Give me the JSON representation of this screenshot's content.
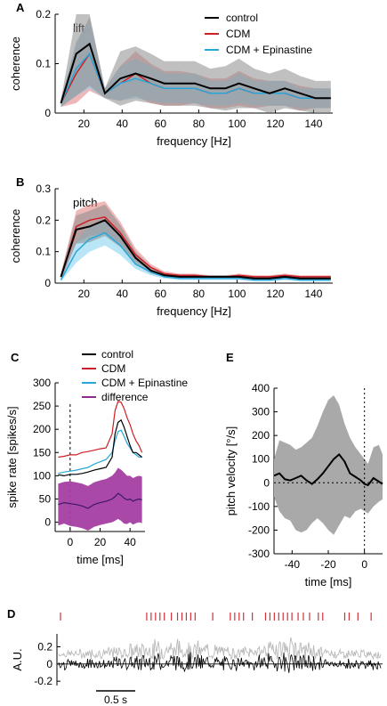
{
  "colors": {
    "control": "#000000",
    "cdm": "#cc1f26",
    "epinastine": "#29a6d9",
    "difference": "#8e2a8c",
    "difference_band": "#a53ea3",
    "gray_band": "#a9a9a9",
    "raster": "#d0323a",
    "trace_light": "#b9b9b9"
  },
  "chart_data": [
    {
      "id": "A",
      "type": "line",
      "panel_label": "A",
      "inset_label": "lift",
      "xlabel": "frequency [Hz]",
      "ylabel": "coherence",
      "xlim": [
        5,
        150
      ],
      "ylim": [
        0,
        0.2
      ],
      "xticks": [
        20,
        40,
        60,
        80,
        100,
        120,
        140
      ],
      "yticks": [
        0,
        0.1,
        0.2
      ],
      "x": [
        8,
        16,
        23,
        31,
        39,
        47,
        55,
        62,
        70,
        78,
        86,
        94,
        101,
        109,
        117,
        125,
        133,
        141,
        149
      ],
      "series": [
        {
          "name": "control",
          "key": "control",
          "values": [
            0.02,
            0.12,
            0.14,
            0.04,
            0.07,
            0.08,
            0.07,
            0.06,
            0.06,
            0.06,
            0.05,
            0.05,
            0.06,
            0.05,
            0.04,
            0.05,
            0.04,
            0.03,
            0.03
          ],
          "band": [
            0.015,
            0.17,
            0.17,
            0.02,
            0.11,
            0.11,
            0.1,
            0.09,
            0.09,
            0.09,
            0.08,
            0.09,
            0.1,
            0.08,
            0.08,
            0.08,
            0.07,
            0.07,
            0.07
          ]
        },
        {
          "name": "CDM",
          "key": "cdm",
          "values": [
            0.02,
            0.08,
            0.12,
            0.04,
            0.06,
            0.08,
            0.06,
            0.05,
            0.05,
            0.05,
            0.04,
            0.04,
            0.05,
            0.04,
            0.04,
            0.04,
            0.03,
            0.03,
            0.03
          ],
          "band": [
            0.015,
            0.12,
            0.15,
            0.02,
            0.07,
            0.09,
            0.08,
            0.07,
            0.07,
            0.06,
            0.06,
            0.06,
            0.07,
            0.06,
            0.05,
            0.05,
            0.05,
            0.04,
            0.04
          ]
        },
        {
          "name": "CDM + Epinastine",
          "key": "epinastine",
          "values": [
            0.02,
            0.09,
            0.12,
            0.04,
            0.06,
            0.07,
            0.06,
            0.05,
            0.05,
            0.05,
            0.04,
            0.04,
            0.05,
            0.04,
            0.04,
            0.04,
            0.03,
            0.03,
            0.03
          ],
          "band": [
            0.015,
            0.11,
            0.14,
            0.02,
            0.07,
            0.08,
            0.07,
            0.06,
            0.06,
            0.06,
            0.05,
            0.05,
            0.06,
            0.05,
            0.05,
            0.05,
            0.04,
            0.04,
            0.04
          ]
        }
      ]
    },
    {
      "id": "B",
      "type": "line",
      "panel_label": "B",
      "inset_label": "pitch",
      "xlabel": "frequency [Hz]",
      "ylabel": "coherence",
      "xlim": [
        5,
        150
      ],
      "ylim": [
        0,
        0.3
      ],
      "xticks": [
        20,
        40,
        60,
        80,
        100,
        120,
        140
      ],
      "yticks": [
        0,
        0.1,
        0.2,
        0.3
      ],
      "x": [
        8,
        16,
        23,
        31,
        39,
        47,
        55,
        62,
        70,
        78,
        86,
        94,
        101,
        109,
        117,
        125,
        133,
        141,
        149
      ],
      "series": [
        {
          "name": "control",
          "key": "control",
          "values": [
            0.02,
            0.17,
            0.18,
            0.2,
            0.15,
            0.08,
            0.04,
            0.025,
            0.02,
            0.02,
            0.02,
            0.02,
            0.02,
            0.015,
            0.015,
            0.02,
            0.015,
            0.015,
            0.015
          ],
          "band": [
            0.02,
            0.09,
            0.1,
            0.1,
            0.07,
            0.04,
            0.02,
            0.01,
            0.01,
            0.01,
            0.01,
            0.01,
            0.01,
            0.01,
            0.01,
            0.01,
            0.01,
            0.01,
            0.01
          ]
        },
        {
          "name": "CDM",
          "key": "cdm",
          "values": [
            0.02,
            0.18,
            0.2,
            0.21,
            0.16,
            0.09,
            0.05,
            0.03,
            0.025,
            0.025,
            0.02,
            0.02,
            0.025,
            0.02,
            0.02,
            0.025,
            0.02,
            0.02,
            0.02
          ],
          "band": [
            0.02,
            0.1,
            0.1,
            0.1,
            0.07,
            0.04,
            0.02,
            0.015,
            0.01,
            0.01,
            0.01,
            0.01,
            0.01,
            0.01,
            0.01,
            0.01,
            0.01,
            0.01,
            0.01
          ]
        },
        {
          "name": "CDM + Epinastine",
          "key": "epinastine",
          "values": [
            0.01,
            0.1,
            0.14,
            0.16,
            0.12,
            0.06,
            0.035,
            0.02,
            0.015,
            0.015,
            0.015,
            0.015,
            0.015,
            0.01,
            0.01,
            0.015,
            0.01,
            0.01,
            0.01
          ],
          "band": [
            0.01,
            0.07,
            0.08,
            0.08,
            0.06,
            0.03,
            0.02,
            0.01,
            0.01,
            0.01,
            0.01,
            0.01,
            0.01,
            0.01,
            0.01,
            0.01,
            0.01,
            0.01,
            0.01
          ]
        }
      ]
    },
    {
      "id": "C",
      "type": "line",
      "panel_label": "C",
      "xlabel": "time [ms]",
      "ylabel": "spike rate [spikes/s]",
      "xlim": [
        -10,
        50
      ],
      "ylim": [
        -20,
        300
      ],
      "xticks": [
        0,
        20,
        40
      ],
      "yticks": [
        0,
        50,
        100,
        150,
        200,
        250,
        300
      ],
      "vline": 0,
      "x": [
        -8,
        -4,
        0,
        4,
        8,
        12,
        16,
        20,
        24,
        28,
        30,
        32,
        34,
        36,
        38,
        40,
        42,
        44,
        46,
        48
      ],
      "series": [
        {
          "name": "control",
          "key": "control",
          "values": [
            102,
            100,
            103,
            103,
            105,
            108,
            112,
            115,
            118,
            140,
            190,
            215,
            220,
            205,
            185,
            165,
            150,
            150,
            145,
            140
          ]
        },
        {
          "name": "CDM",
          "key": "cdm",
          "values": [
            140,
            142,
            145,
            145,
            150,
            152,
            155,
            158,
            160,
            190,
            240,
            260,
            258,
            245,
            225,
            210,
            190,
            175,
            165,
            150
          ]
        },
        {
          "name": "CDM + Epinastine",
          "key": "epinastine",
          "values": [
            105,
            108,
            110,
            112,
            115,
            118,
            125,
            130,
            135,
            150,
            175,
            195,
            198,
            185,
            170,
            160,
            150,
            145,
            140,
            140
          ]
        },
        {
          "name": "difference",
          "key": "difference",
          "values": [
            38,
            42,
            40,
            38,
            35,
            30,
            38,
            42,
            45,
            50,
            55,
            62,
            58,
            52,
            48,
            50,
            45,
            48,
            50,
            48
          ],
          "band": [
            45,
            45,
            48,
            48,
            48,
            48,
            48,
            48,
            48,
            50,
            52,
            55,
            55,
            55,
            52,
            50,
            50,
            50,
            50,
            50
          ]
        }
      ]
    },
    {
      "id": "E",
      "type": "line",
      "panel_label": "E",
      "xlabel": "time [ms]",
      "ylabel": "pitch velocity [°/s]",
      "xlim": [
        -50,
        10
      ],
      "ylim": [
        -300,
        400
      ],
      "xticks": [
        -40,
        -20,
        0
      ],
      "yticks": [
        -300,
        -200,
        -100,
        0,
        100,
        200,
        300,
        400
      ],
      "vline": 0,
      "hline": 0,
      "x": [
        -50,
        -47,
        -44,
        -41,
        -38,
        -35,
        -32,
        -29,
        -26,
        -23,
        -20,
        -17,
        -14,
        -11,
        -8,
        -5,
        -2,
        0,
        2,
        5,
        8,
        10
      ],
      "series": [
        {
          "name": "pitch velocity",
          "key": "control",
          "values": [
            30,
            40,
            15,
            10,
            20,
            30,
            10,
            -5,
            15,
            40,
            70,
            100,
            120,
            90,
            40,
            25,
            10,
            -5,
            -10,
            20,
            5,
            -5
          ],
          "band_upper": [
            100,
            180,
            170,
            160,
            140,
            150,
            170,
            190,
            240,
            300,
            350,
            370,
            330,
            250,
            190,
            150,
            120,
            100,
            80,
            150,
            160,
            120
          ],
          "band_lower": [
            -60,
            -120,
            -150,
            -160,
            -200,
            -210,
            -200,
            -170,
            -150,
            -170,
            -200,
            -220,
            -180,
            -140,
            -150,
            -120,
            -110,
            -120,
            -130,
            -100,
            -80,
            -70
          ]
        }
      ]
    },
    {
      "id": "D",
      "type": "line",
      "panel_label": "D",
      "ylabel": "A.U.",
      "ylim": [
        -0.25,
        0.35
      ],
      "yticks": [
        -0.2,
        0,
        0.2
      ],
      "scalebar_label": "0.5 s",
      "spike_times_s": [
        0.02,
        1.0,
        1.05,
        1.1,
        1.15,
        1.2,
        1.28,
        1.35,
        1.4,
        1.45,
        1.5,
        1.55,
        1.75,
        1.95,
        2.0,
        2.05,
        2.1,
        2.2,
        2.35,
        2.4,
        2.45,
        2.5,
        2.55,
        2.6,
        2.65,
        2.72,
        2.78,
        2.85,
        2.95,
        3.0,
        3.25,
        3.3,
        3.4,
        3.55
      ],
      "duration_s": 3.7
    }
  ],
  "legend_A": [
    {
      "label": "control",
      "key": "control"
    },
    {
      "label": "CDM",
      "key": "cdm"
    },
    {
      "label": "CDM + Epinastine",
      "key": "epinastine"
    }
  ],
  "legend_C": [
    {
      "label": "control",
      "key": "control"
    },
    {
      "label": "CDM",
      "key": "cdm"
    },
    {
      "label": "CDM + Epinastine",
      "key": "epinastine"
    },
    {
      "label": "difference",
      "key": "difference"
    }
  ]
}
